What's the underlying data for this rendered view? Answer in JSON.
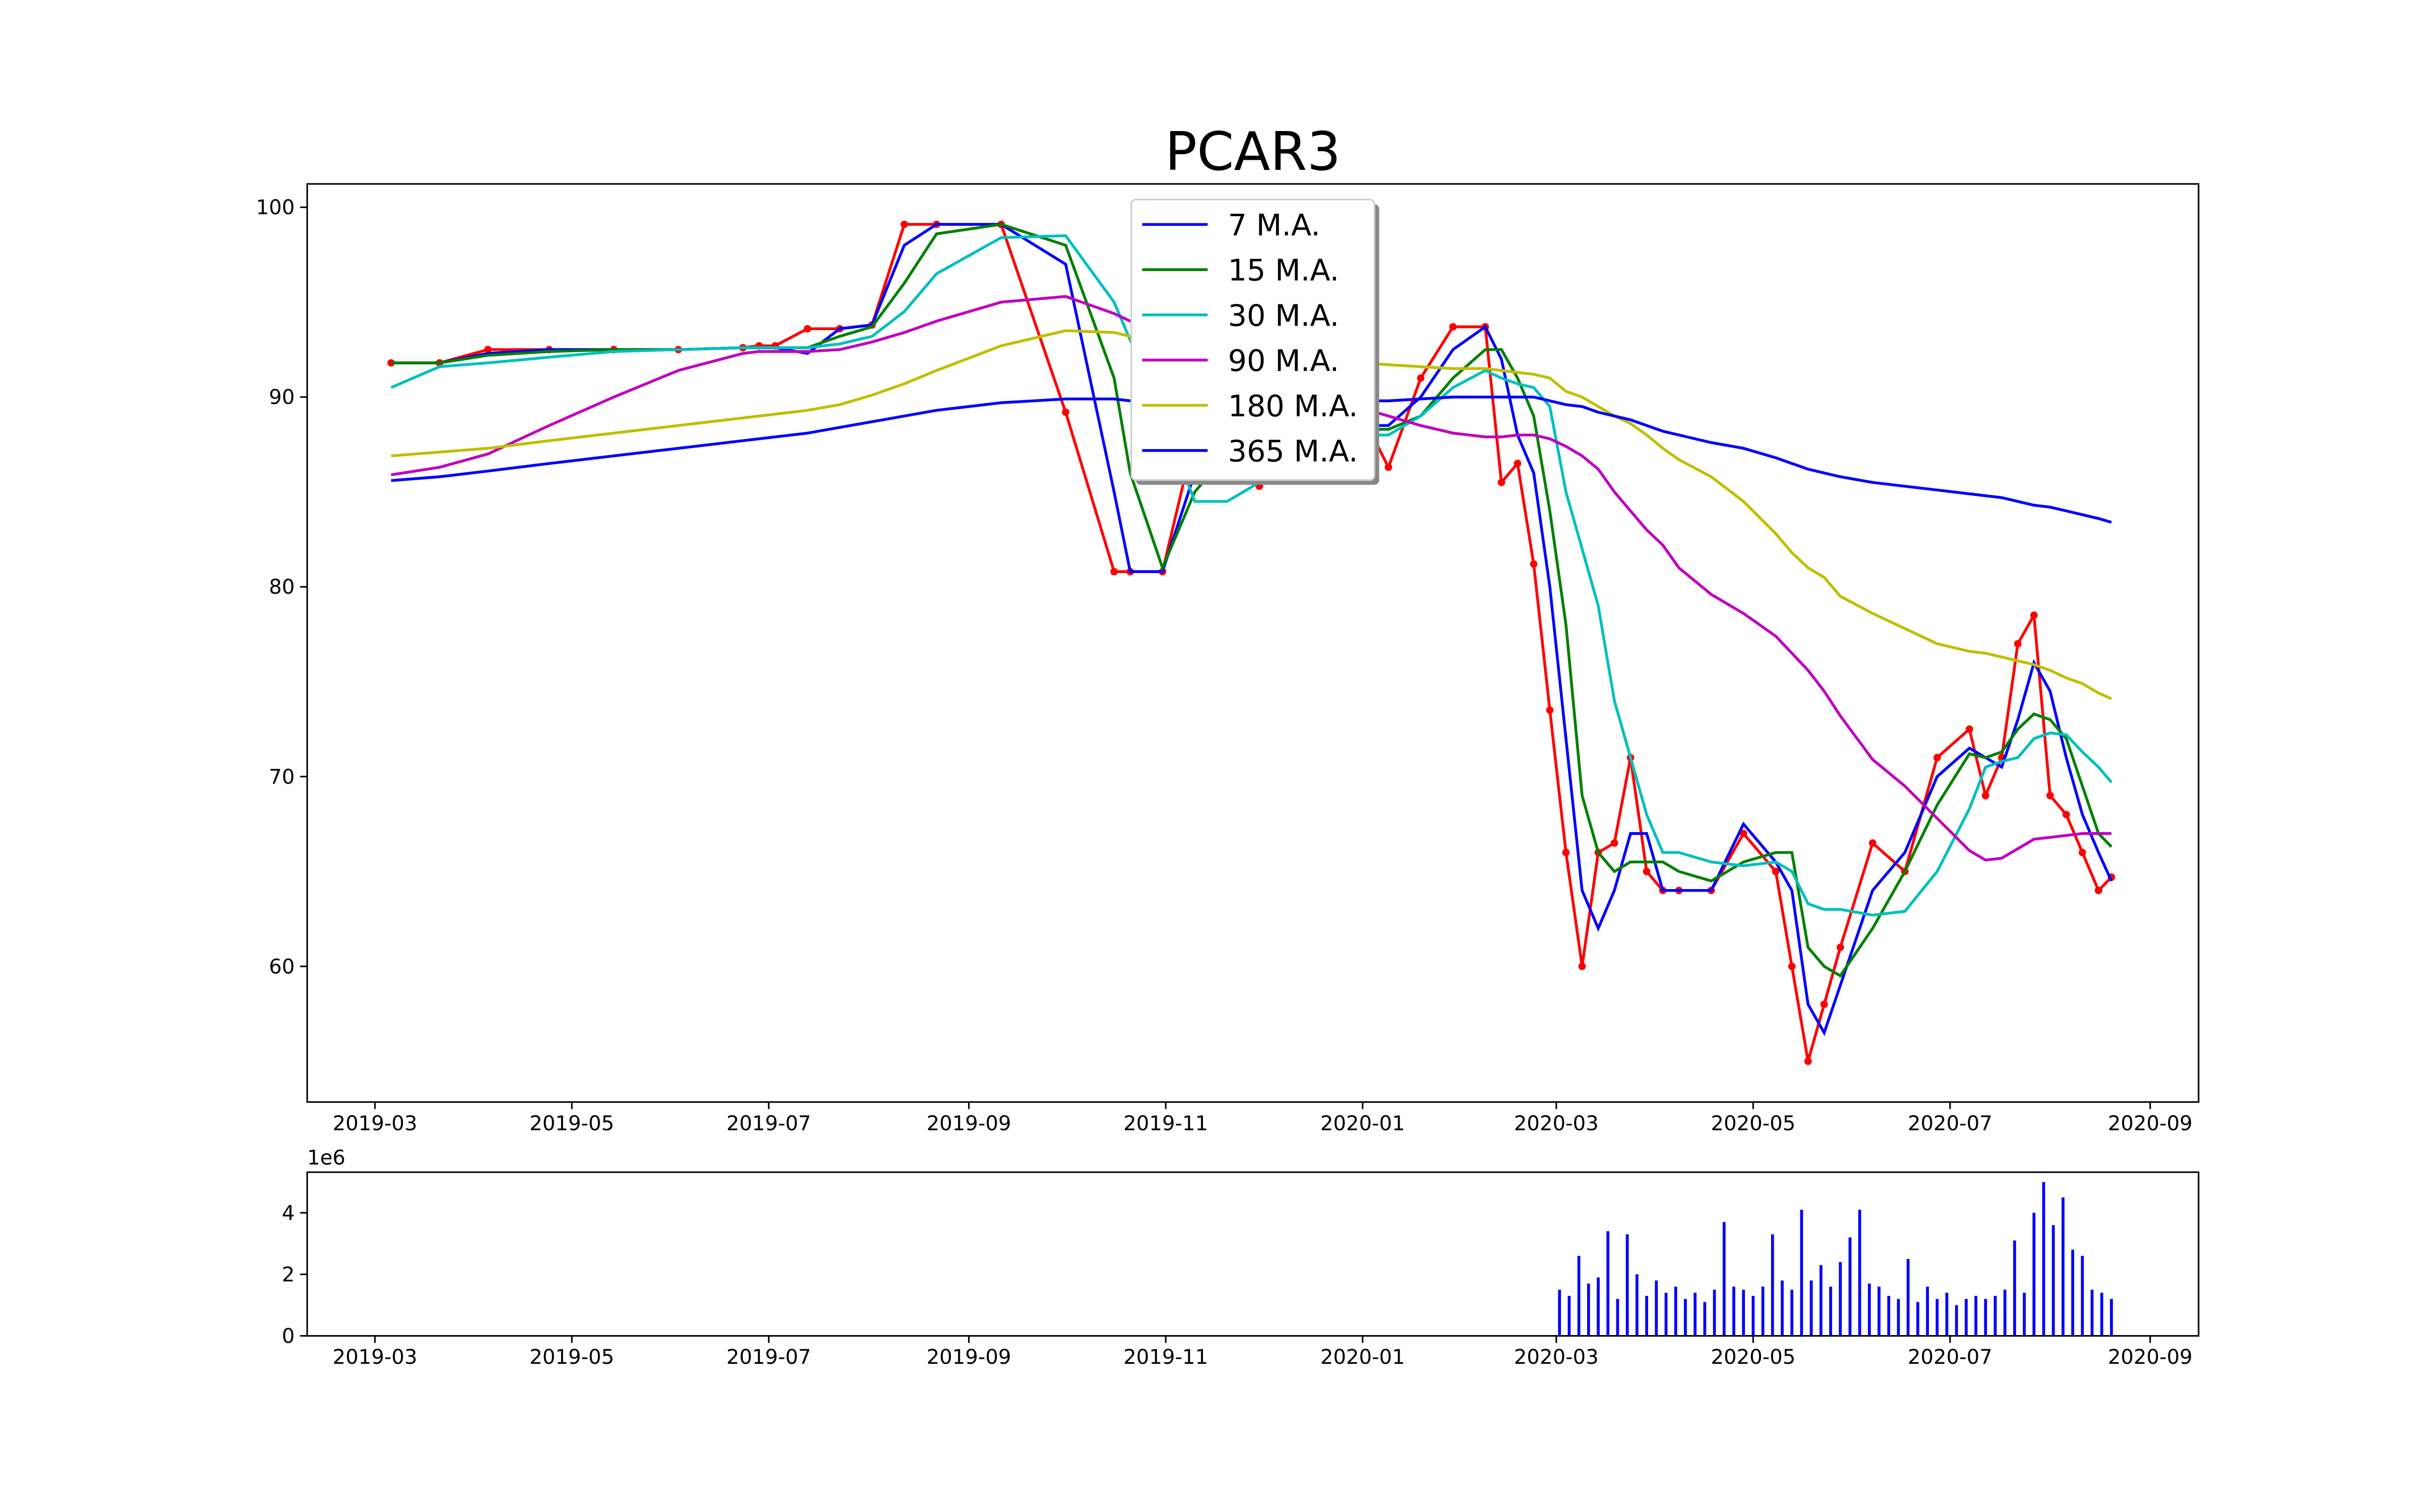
{
  "chart_data": [
    {
      "type": "line",
      "title": "PCAR3",
      "legend": "upper center",
      "grid": false,
      "xlim": [
        17935,
        18521
      ],
      "ylim": [
        52.85,
        101.23
      ],
      "xticks": [
        {
          "value": 17956,
          "label": "2019-03"
        },
        {
          "value": 18017,
          "label": "2019-05"
        },
        {
          "value": 18078,
          "label": "2019-07"
        },
        {
          "value": 18140,
          "label": "2019-09"
        },
        {
          "value": 18201,
          "label": "2019-11"
        },
        {
          "value": 18262,
          "label": "2020-01"
        },
        {
          "value": 18322,
          "label": "2020-03"
        },
        {
          "value": 18383,
          "label": "2020-05"
        },
        {
          "value": 18444,
          "label": "2020-07"
        },
        {
          "value": 18506,
          "label": "2020-09"
        }
      ],
      "yticks": [
        60,
        70,
        80,
        90,
        100
      ],
      "x": [
        17961,
        17976,
        17991,
        18010,
        18030,
        18050,
        18070,
        18075,
        18080,
        18090,
        18100,
        18110,
        18120,
        18130,
        18150,
        18170,
        18185,
        18190,
        18200,
        18210,
        18220,
        18230,
        18240,
        18250,
        18262,
        18270,
        18280,
        18290,
        18300,
        18305,
        18310,
        18315,
        18320,
        18325,
        18330,
        18335,
        18340,
        18345,
        18350,
        18355,
        18360,
        18370,
        18380,
        18390,
        18395,
        18400,
        18405,
        18410,
        18420,
        18430,
        18440,
        18450,
        18455,
        18460,
        18465,
        18470,
        18475,
        18480,
        18485,
        18490,
        18494
      ],
      "price": {
        "color": "#ff0000",
        "values": [
          91.8,
          91.8,
          92.5,
          92.5,
          92.5,
          92.5,
          92.6,
          92.7,
          92.7,
          93.6,
          93.6,
          93.8,
          99.1,
          99.1,
          99.1,
          89.2,
          80.8,
          80.8,
          80.8,
          88,
          86,
          85.3,
          87,
          89,
          89,
          86.3,
          91,
          93.7,
          93.7,
          85.5,
          86.5,
          81.2,
          73.5,
          66,
          60,
          66,
          66.5,
          71,
          65,
          64,
          64,
          64,
          67,
          65,
          60,
          55,
          58,
          61,
          66.5,
          65,
          71,
          72.5,
          69,
          71,
          77,
          78.5,
          69,
          68,
          66,
          64,
          64.7
        ]
      },
      "series": [
        {
          "name": "7 M.A.",
          "color": "#0000ff",
          "values": [
            91.8,
            91.8,
            92.3,
            92.5,
            92.5,
            92.5,
            92.6,
            92.6,
            92.6,
            92.3,
            93.6,
            93.8,
            98,
            99.1,
            99.1,
            97,
            85,
            80.8,
            80.8,
            86,
            86,
            86,
            87,
            88,
            88.5,
            88.5,
            90,
            92.5,
            93.7,
            92,
            88,
            86,
            80,
            72,
            64,
            62,
            64,
            67,
            67,
            64,
            64,
            64,
            67.5,
            65.5,
            64,
            58,
            56.5,
            59,
            64,
            66,
            70,
            71.5,
            71,
            70.5,
            73,
            76,
            74.5,
            71,
            68,
            66,
            64.5
          ]
        },
        {
          "name": "15 M.A.",
          "color": "#008000",
          "values": [
            91.8,
            91.8,
            92.2,
            92.4,
            92.5,
            92.5,
            92.6,
            92.6,
            92.6,
            92.6,
            93.2,
            93.7,
            96,
            98.6,
            99.1,
            98,
            91,
            86,
            81,
            85,
            87,
            86,
            86.5,
            87.5,
            88.3,
            88.3,
            89,
            91,
            92.5,
            92.5,
            91,
            89,
            84,
            78,
            69,
            66,
            65,
            65.5,
            65.5,
            65.5,
            65,
            64.5,
            65.5,
            66,
            66,
            61,
            60,
            59.5,
            62,
            65,
            68.5,
            71.2,
            71,
            71.3,
            72.5,
            73.3,
            73,
            72,
            69.5,
            67,
            66.3
          ]
        },
        {
          "name": "30 M.A.",
          "color": "#00bfbf",
          "values": [
            90.5,
            91.6,
            91.8,
            92.1,
            92.4,
            92.5,
            92.6,
            92.6,
            92.6,
            92.6,
            92.8,
            93.2,
            94.5,
            96.5,
            98.4,
            98.5,
            95,
            93,
            89,
            84.5,
            84.5,
            85.5,
            86.5,
            87,
            88,
            88,
            89,
            90.5,
            91.4,
            91,
            90.7,
            90.5,
            89.5,
            85,
            82,
            79,
            74,
            71,
            68,
            66,
            66,
            65.5,
            65.3,
            65.5,
            65,
            63.3,
            63,
            63,
            62.7,
            62.9,
            65,
            68.3,
            70.5,
            70.8,
            71,
            72,
            72.3,
            72.2,
            71.3,
            70.5,
            69.7
          ]
        },
        {
          "name": "90 M.A.",
          "color": "#bf00bf",
          "values": [
            85.9,
            86.3,
            87,
            88.5,
            90,
            91.4,
            92.3,
            92.4,
            92.4,
            92.4,
            92.5,
            92.9,
            93.4,
            94,
            95,
            95.3,
            94.4,
            94,
            93.2,
            92.5,
            91.6,
            91,
            90,
            89.5,
            89.4,
            89,
            88.5,
            88.1,
            87.9,
            87.9,
            88,
            88,
            87.8,
            87.4,
            86.9,
            86.2,
            85,
            84,
            83,
            82.2,
            81,
            79.6,
            78.6,
            77.4,
            76.5,
            75.6,
            74.5,
            73.2,
            70.9,
            69.5,
            67.8,
            66.1,
            65.6,
            65.7,
            66.2,
            66.7,
            66.8,
            66.9,
            67,
            67,
            67
          ]
        },
        {
          "name": "180 M.A.",
          "color": "#bfbf00",
          "values": [
            86.9,
            87.1,
            87.3,
            87.7,
            88.1,
            88.5,
            88.9,
            89,
            89.1,
            89.3,
            89.6,
            90.1,
            90.7,
            91.4,
            92.7,
            93.5,
            93.4,
            93.2,
            92.8,
            92.5,
            92.3,
            92.2,
            92.1,
            92,
            91.8,
            91.7,
            91.6,
            91.5,
            91.5,
            91.4,
            91.3,
            91.2,
            91,
            90.3,
            90,
            89.5,
            89,
            88.6,
            88,
            87.3,
            86.7,
            85.8,
            84.5,
            82.8,
            81.8,
            81,
            80.5,
            79.5,
            78.6,
            77.8,
            77,
            76.6,
            76.5,
            76.3,
            76.1,
            75.9,
            75.6,
            75.2,
            74.9,
            74.4,
            74.1
          ]
        },
        {
          "name": "365 M.A.",
          "color": "#0000ff",
          "values": [
            85.6,
            85.8,
            86.1,
            86.5,
            86.9,
            87.3,
            87.7,
            87.8,
            87.9,
            88.1,
            88.4,
            88.7,
            89,
            89.3,
            89.7,
            89.9,
            89.9,
            89.8,
            89.7,
            89.7,
            89.6,
            89.6,
            89.7,
            89.8,
            89.8,
            89.8,
            89.9,
            90,
            90,
            90,
            90,
            90,
            89.8,
            89.6,
            89.5,
            89.2,
            89,
            88.8,
            88.5,
            88.2,
            88,
            87.6,
            87.3,
            86.8,
            86.5,
            86.2,
            86,
            85.8,
            85.5,
            85.3,
            85.1,
            84.9,
            84.8,
            84.7,
            84.5,
            84.3,
            84.2,
            84,
            83.8,
            83.6,
            83.4
          ]
        }
      ]
    },
    {
      "type": "bar",
      "color": "#0000ff",
      "offset_label": "1e6",
      "xlim": [
        17935,
        18521
      ],
      "ylim": [
        0,
        5.32
      ],
      "xticks": [
        {
          "value": 17956,
          "label": "2019-03"
        },
        {
          "value": 18017,
          "label": "2019-05"
        },
        {
          "value": 18078,
          "label": "2019-07"
        },
        {
          "value": 18140,
          "label": "2019-09"
        },
        {
          "value": 18201,
          "label": "2019-11"
        },
        {
          "value": 18262,
          "label": "2020-01"
        },
        {
          "value": 18322,
          "label": "2020-03"
        },
        {
          "value": 18383,
          "label": "2020-05"
        },
        {
          "value": 18444,
          "label": "2020-07"
        },
        {
          "value": 18506,
          "label": "2020-09"
        }
      ],
      "yticks": [
        0,
        2,
        4
      ],
      "x": [
        18323,
        18326,
        18329,
        18332,
        18335,
        18338,
        18341,
        18344,
        18347,
        18350,
        18353,
        18356,
        18359,
        18362,
        18365,
        18368,
        18371,
        18374,
        18377,
        18380,
        18383,
        18386,
        18389,
        18392,
        18395,
        18398,
        18401,
        18404,
        18407,
        18410,
        18413,
        18416,
        18419,
        18422,
        18425,
        18428,
        18431,
        18434,
        18437,
        18440,
        18443,
        18446,
        18449,
        18452,
        18455,
        18458,
        18461,
        18464,
        18467,
        18470,
        18473,
        18476,
        18479,
        18482,
        18485,
        18488,
        18491,
        18494
      ],
      "values": [
        1.5,
        1.3,
        2.6,
        1.7,
        1.9,
        3.4,
        1.2,
        3.3,
        2.0,
        1.3,
        1.8,
        1.4,
        1.6,
        1.2,
        1.4,
        1.1,
        1.5,
        3.7,
        1.6,
        1.5,
        1.3,
        1.6,
        3.3,
        1.8,
        1.5,
        4.1,
        1.8,
        2.3,
        1.6,
        2.4,
        3.2,
        4.1,
        1.7,
        1.6,
        1.3,
        1.2,
        2.5,
        1.1,
        1.6,
        1.2,
        1.4,
        1.0,
        1.2,
        1.3,
        1.2,
        1.3,
        1.5,
        3.1,
        1.4,
        4.0,
        5.0,
        3.6,
        4.5,
        2.8,
        2.6,
        1.5,
        1.4,
        1.2
      ]
    }
  ]
}
